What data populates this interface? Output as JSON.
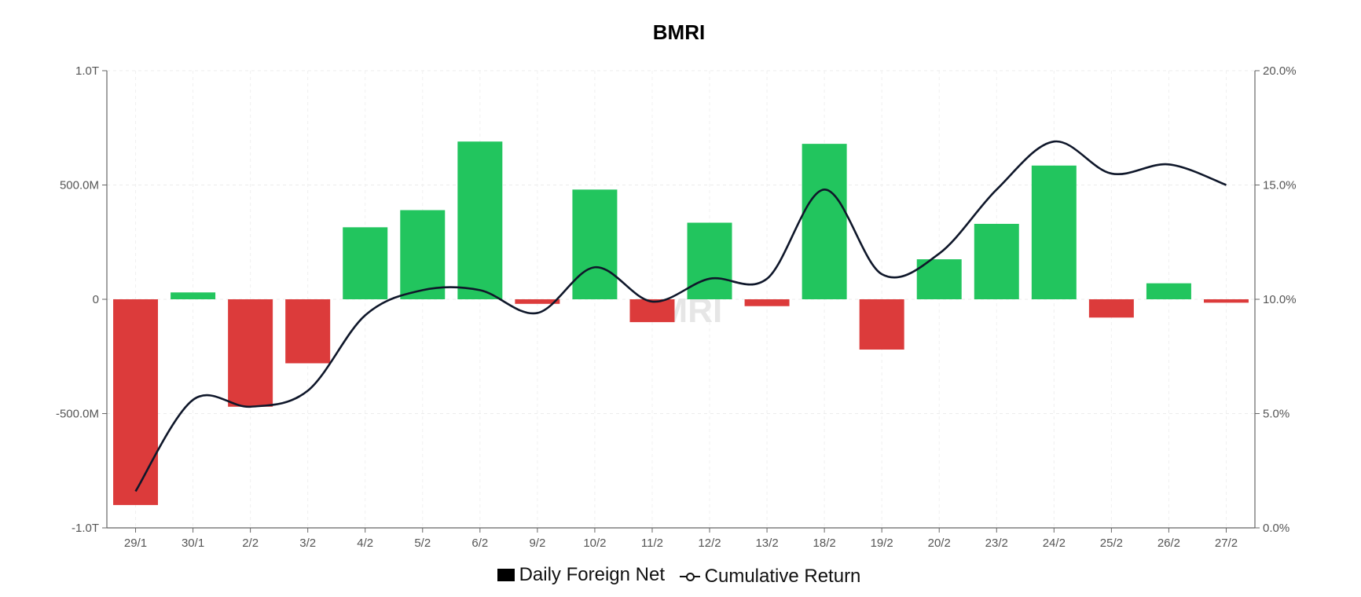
{
  "chart_data": {
    "type": "bar",
    "title": "BMRI",
    "watermark": "BMRI",
    "categories": [
      "29/1",
      "30/1",
      "2/2",
      "3/2",
      "4/2",
      "5/2",
      "6/2",
      "9/2",
      "10/2",
      "11/2",
      "12/2",
      "13/2",
      "18/2",
      "19/2",
      "20/2",
      "23/2",
      "24/2",
      "25/2",
      "26/2",
      "27/2"
    ],
    "series": [
      {
        "name": "Daily Foreign Net",
        "type": "bar",
        "axis": "left",
        "values": [
          -900000000,
          30000000,
          -470000000,
          -280000000,
          315000000,
          390000000,
          690000000,
          -20000000,
          480000000,
          -100000000,
          335000000,
          -30000000,
          680000000,
          -220000000,
          175000000,
          330000000,
          585000000,
          -80000000,
          70000000,
          -15000000
        ],
        "positive_color": "#22c55e",
        "negative_color": "#dc3b3b"
      },
      {
        "name": "Cumulative Return",
        "type": "line",
        "axis": "right",
        "values": [
          1.6,
          5.6,
          5.3,
          6.0,
          9.3,
          10.4,
          10.4,
          9.4,
          11.4,
          9.9,
          10.9,
          10.9,
          14.8,
          11.1,
          12.0,
          14.8,
          16.9,
          15.5,
          15.9,
          15.0
        ],
        "color": "#0f172a"
      }
    ],
    "y_left": {
      "ylim": [
        -1000000000,
        1000000000
      ],
      "ticks": [
        -1000000000,
        -500000000,
        0,
        500000000,
        1000000000
      ],
      "tick_labels": [
        "-1.0T",
        "-500.0M",
        "0",
        "500.0M",
        "1.0T"
      ]
    },
    "y_right": {
      "ylim": [
        0,
        20
      ],
      "ticks": [
        0,
        5,
        10,
        15,
        20
      ],
      "tick_labels": [
        "0.0%",
        "5.0%",
        "10.0%",
        "15.0%",
        "20.0%"
      ]
    },
    "grid": true,
    "legend": {
      "placement": "bottom",
      "labels": [
        "Daily Foreign Net",
        "Cumulative Return"
      ]
    },
    "xlabel": "",
    "ylabel": ""
  }
}
